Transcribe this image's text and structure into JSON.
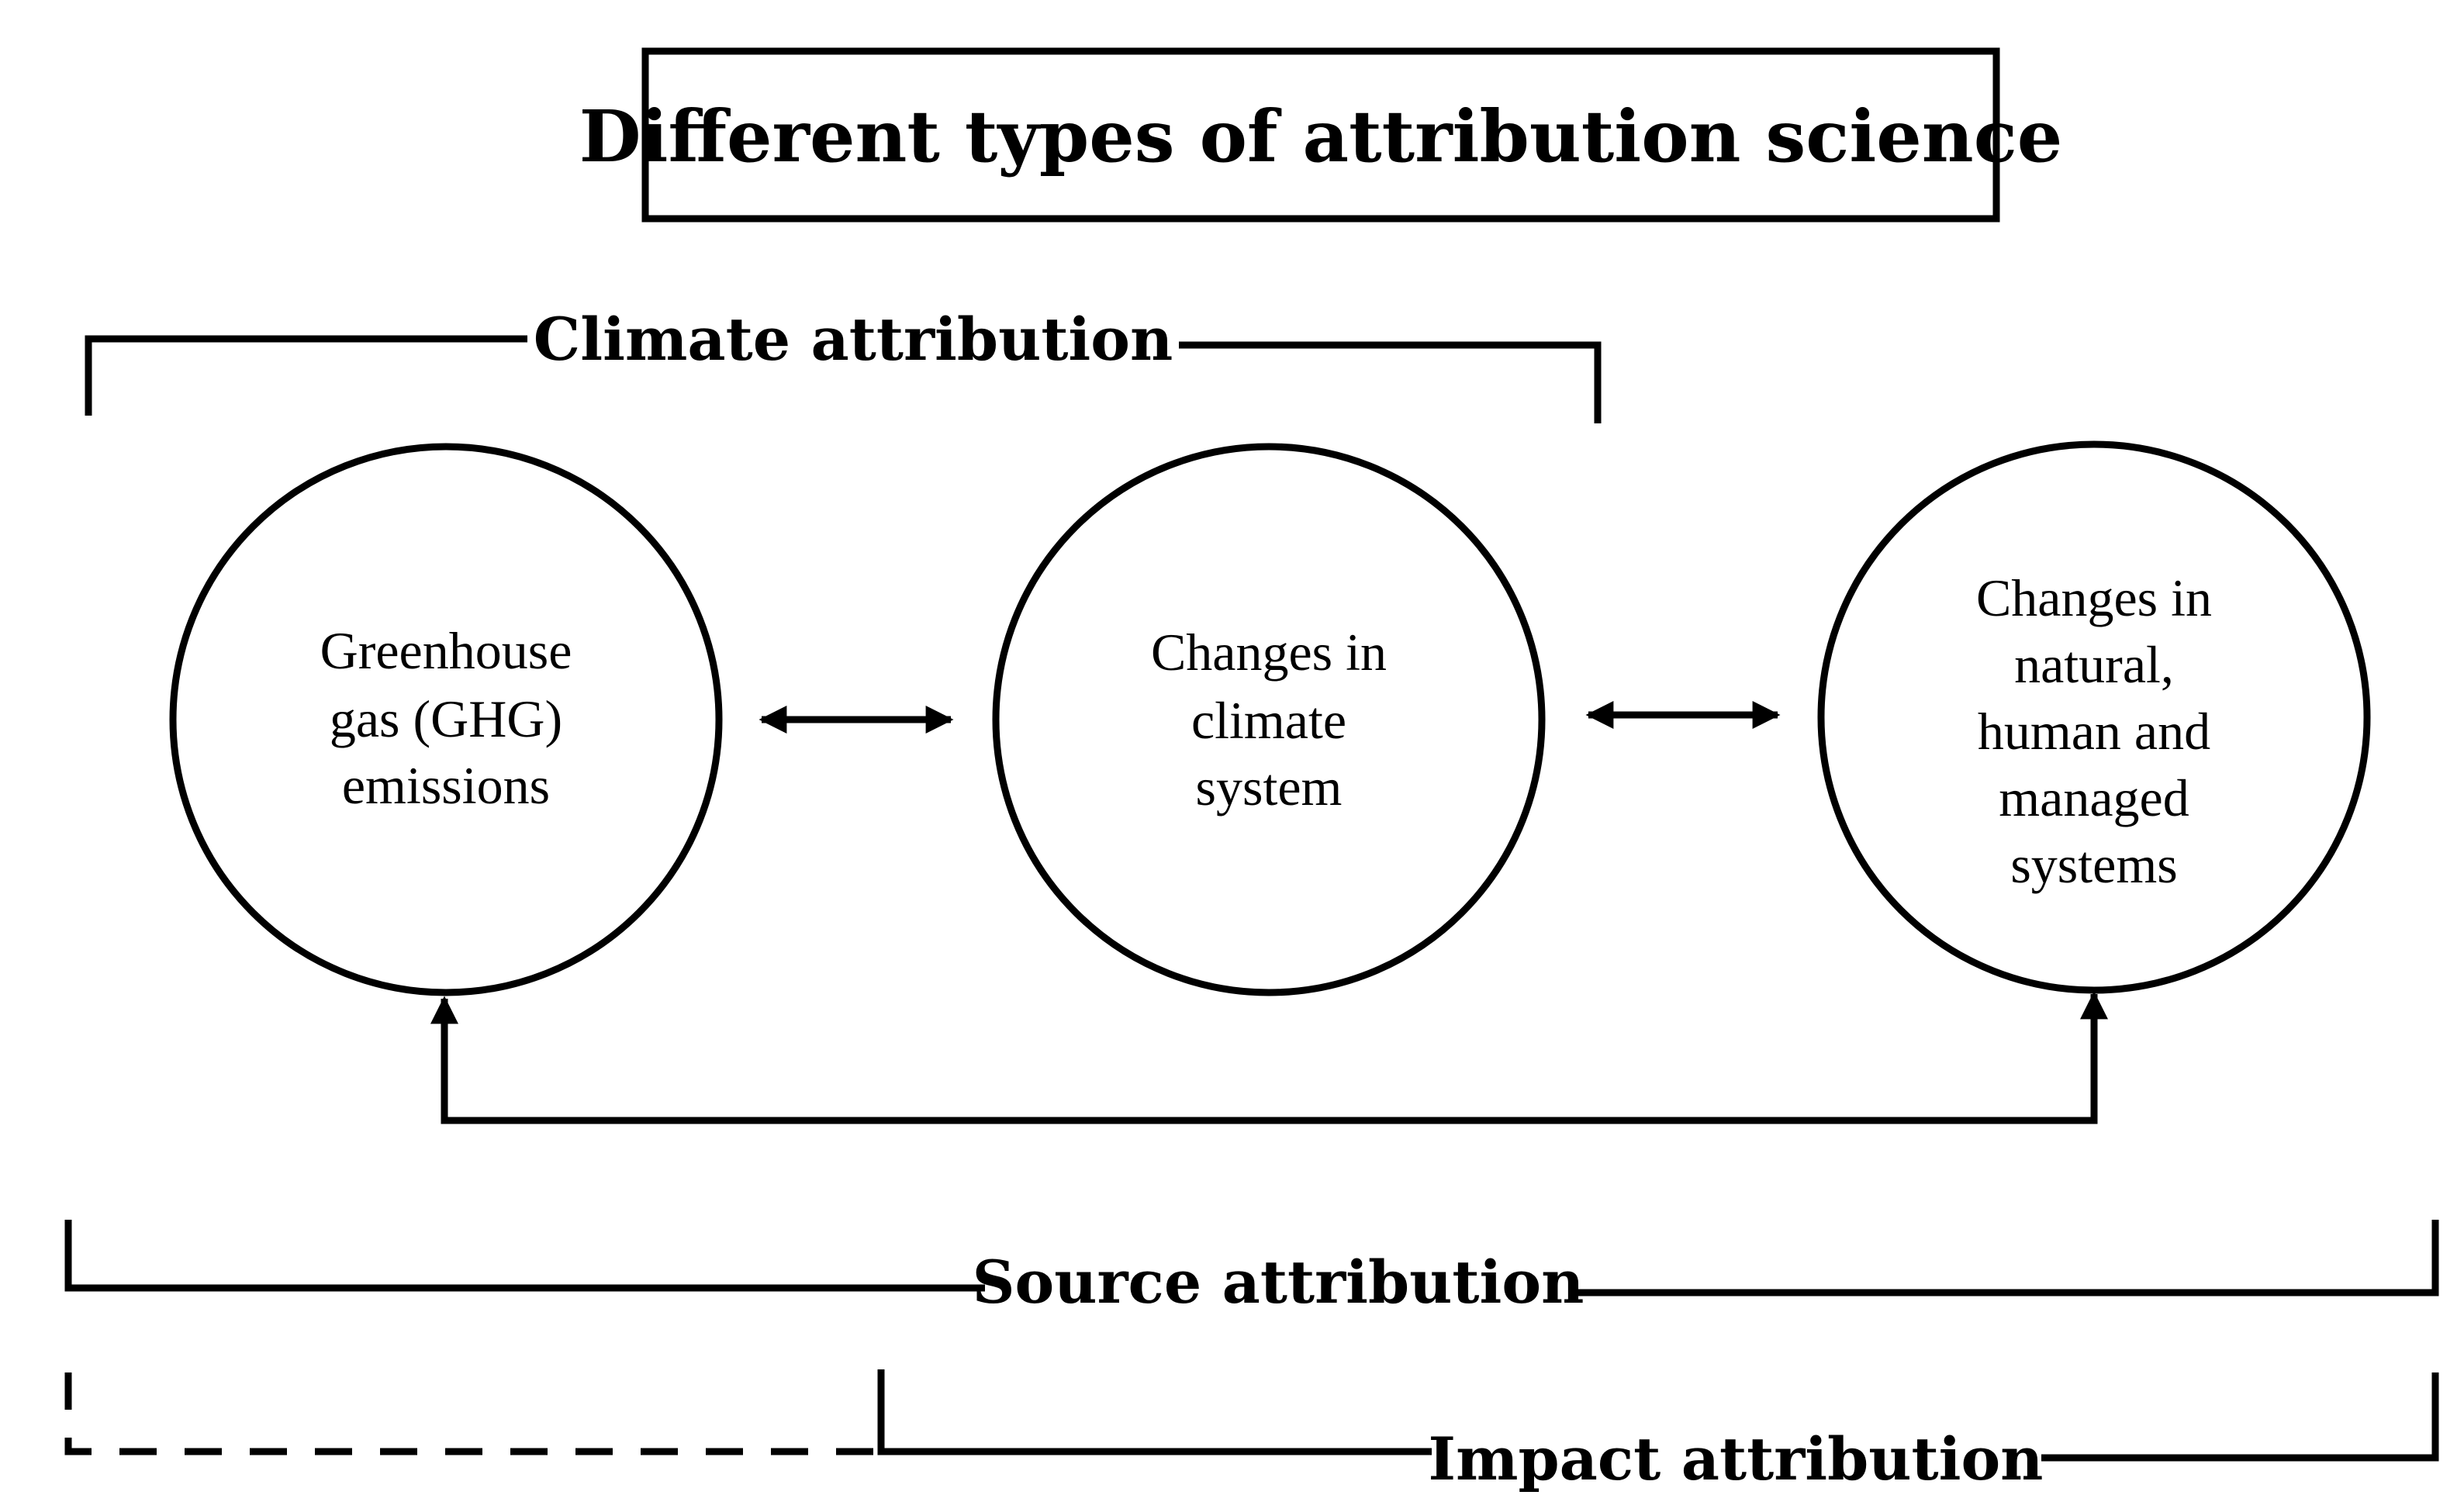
{
  "title": "Different types of attribution science",
  "nodes": [
    {
      "id": "ghg",
      "lines": [
        "Greenhouse",
        "gas (GHG)",
        "emissions"
      ]
    },
    {
      "id": "climate",
      "lines": [
        "Changes in",
        "climate",
        "system"
      ]
    },
    {
      "id": "impacts",
      "lines": [
        "Changes in",
        "natural,",
        "human and",
        "managed",
        "systems"
      ]
    }
  ],
  "brackets": {
    "climate": "Climate attribution",
    "source": "Source attribution",
    "impact": "Impact attribution"
  },
  "colors": {
    "ink": "#000000",
    "background": "#ffffff"
  }
}
